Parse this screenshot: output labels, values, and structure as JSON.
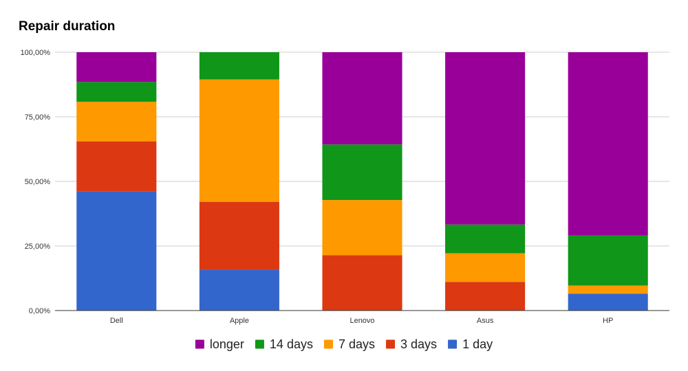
{
  "chart_data": {
    "type": "bar",
    "stacked": true,
    "normalized": true,
    "title": "Repair duration",
    "xlabel": "",
    "ylabel": "",
    "ylim": [
      0,
      100
    ],
    "y_ticks": [
      "0,00%",
      "25,00%",
      "50,00%",
      "75,00%",
      "100,00%"
    ],
    "grid": true,
    "legend_position": "bottom",
    "categories": [
      "Dell",
      "Apple",
      "Lenovo",
      "Asus",
      "HP"
    ],
    "series": [
      {
        "name": "1 day",
        "color": "#3366cc",
        "values": [
          46.2,
          15.8,
          0.0,
          0.0,
          6.5
        ]
      },
      {
        "name": "3 days",
        "color": "#dc3912",
        "values": [
          19.3,
          26.3,
          21.4,
          11.1,
          0.0
        ]
      },
      {
        "name": "7 days",
        "color": "#ff9900",
        "values": [
          15.3,
          47.4,
          21.4,
          11.1,
          3.2
        ]
      },
      {
        "name": "14 days",
        "color": "#109618",
        "values": [
          7.7,
          10.5,
          21.5,
          11.1,
          19.4
        ]
      },
      {
        "name": "longer",
        "color": "#990099",
        "values": [
          11.5,
          0.0,
          35.7,
          66.7,
          70.9
        ]
      }
    ],
    "legend_order": [
      "longer",
      "14 days",
      "7 days",
      "3 days",
      "1 day"
    ]
  }
}
